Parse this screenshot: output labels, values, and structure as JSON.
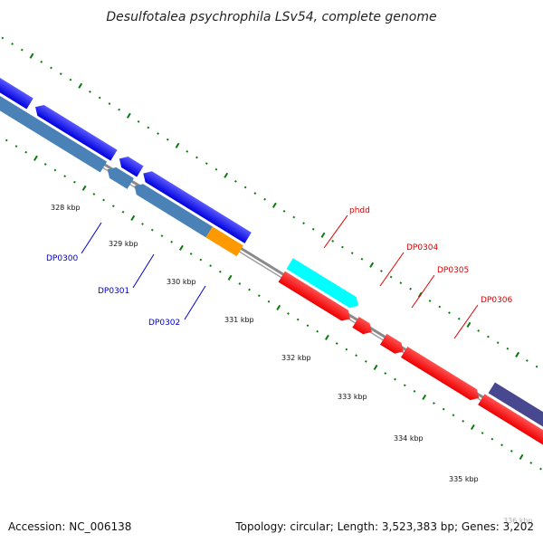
{
  "title": "Desulfotalea psychrophila LSv54, complete genome",
  "footer": {
    "accession": "Accession: NC_006138",
    "summary": "Topology: circular; Length: 3,523,383 bp; Genes: 3,202"
  },
  "colors": {
    "reverse_blue": "#0a0aee",
    "reverse_steel": "#4a82b8",
    "forward_red": "#ff0000",
    "cyan": "#00ffff",
    "orange": "#ff9900",
    "slate": "#484890",
    "ring": "#888888",
    "tick_green": "#0a7a0a",
    "label_blue": "#0000cc",
    "label_red": "#dd0000"
  },
  "scale_labels": [
    "328 kbp",
    "329 kbp",
    "330 kbp",
    "331 kbp",
    "332 kbp",
    "333 kbp",
    "334 kbp",
    "335 kbp",
    "336 kbp"
  ],
  "gene_labels": {
    "dp0300": "DP0300",
    "dp0301": "DP0301",
    "dp0302": "DP0302",
    "phdd": "phdd",
    "dp0304": "DP0304",
    "dp0305": "DP0305",
    "dp0306": "DP0306"
  }
}
